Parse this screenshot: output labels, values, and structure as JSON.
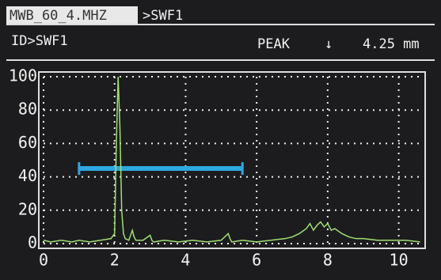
{
  "header": {
    "probe": "MWB_60_4.MHZ",
    "file": ">SWF1"
  },
  "status": {
    "id": "ID>SWF1",
    "mode": "PEAK",
    "arrow": "↓",
    "reading": "4.25 mm"
  },
  "chart_data": {
    "type": "line",
    "x": [
      0,
      0.2,
      0.5,
      0.8,
      1.0,
      1.3,
      1.6,
      1.9,
      2.0,
      2.05,
      2.1,
      2.15,
      2.2,
      2.25,
      2.3,
      2.4,
      2.5,
      2.55,
      2.6,
      2.8,
      3.0,
      3.05,
      3.1,
      3.4,
      3.8,
      4.2,
      4.6,
      5.0,
      5.2,
      5.25,
      5.3,
      5.6,
      6.0,
      6.4,
      6.8,
      7.0,
      7.2,
      7.4,
      7.5,
      7.6,
      7.7,
      7.8,
      7.9,
      8.0,
      8.1,
      8.2,
      8.4,
      8.6,
      8.8,
      9.0,
      9.4,
      9.8,
      10.2,
      10.6
    ],
    "values": [
      2,
      1,
      2,
      1,
      2,
      1,
      2,
      3,
      6,
      60,
      100,
      70,
      20,
      6,
      3,
      2,
      8,
      4,
      2,
      2,
      5,
      2,
      1,
      2,
      1,
      2,
      1,
      2,
      6,
      3,
      1,
      2,
      1,
      2,
      3,
      4,
      6,
      9,
      12,
      8,
      11,
      13,
      10,
      12,
      8,
      9,
      6,
      4,
      3,
      3,
      2,
      2,
      2,
      1
    ],
    "color": "#9fe070",
    "xlim": [
      0,
      10.7
    ],
    "ylim": [
      0,
      100
    ],
    "xticks": [
      0,
      2,
      4,
      6,
      8,
      10
    ],
    "yticks": [
      0,
      20,
      40,
      60,
      80,
      100
    ],
    "grid": true,
    "gate": {
      "start": 1.0,
      "end": 5.6,
      "level": 45,
      "color": "#2fa8e0"
    }
  }
}
